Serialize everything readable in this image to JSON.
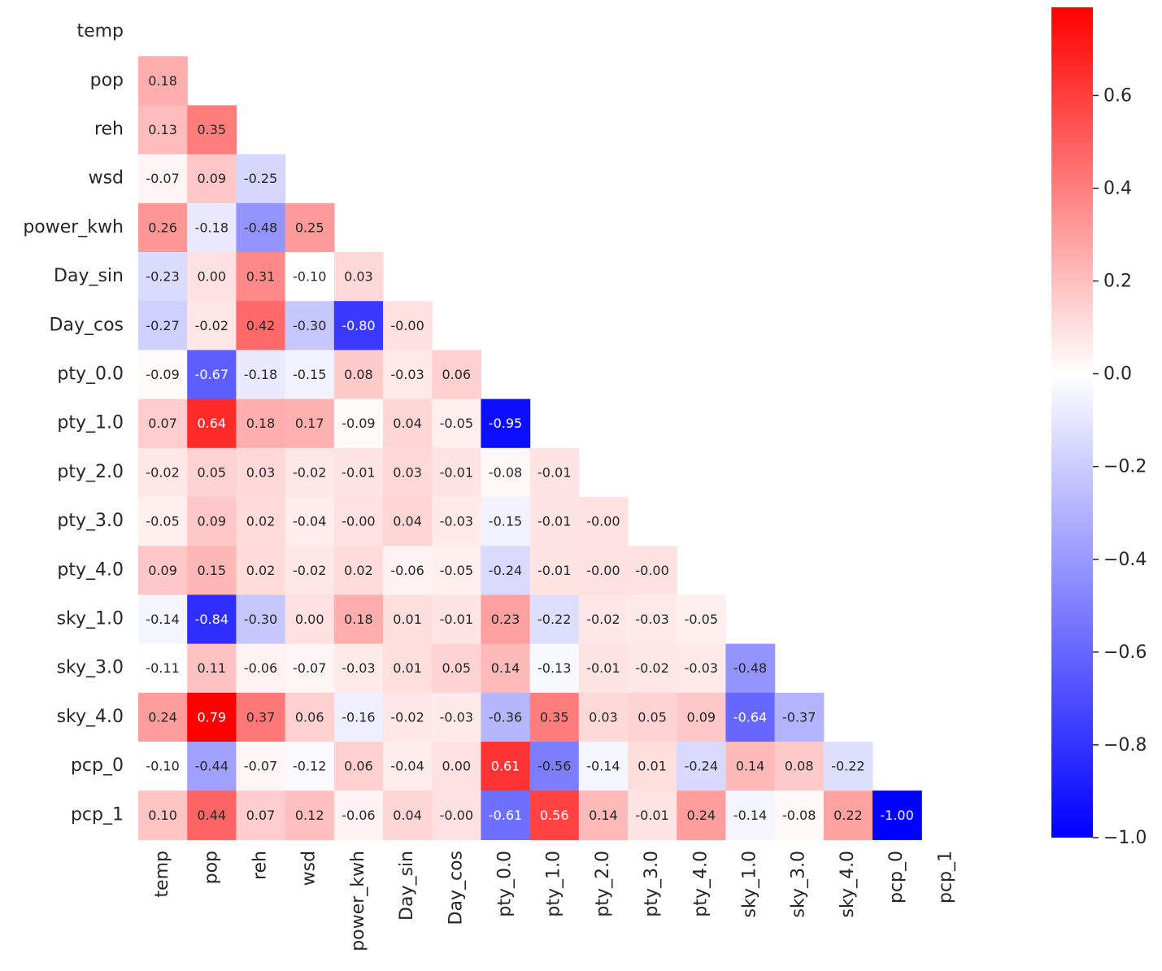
{
  "chart_data": {
    "type": "heatmap",
    "variables": [
      "temp",
      "pop",
      "reh",
      "wsd",
      "power_kwh",
      "Day_sin",
      "Day_cos",
      "pty_0.0",
      "pty_1.0",
      "pty_2.0",
      "pty_3.0",
      "pty_4.0",
      "sky_1.0",
      "sky_3.0",
      "sky_4.0",
      "pcp_0",
      "pcp_1"
    ],
    "rows": [
      "temp",
      "pop",
      "reh",
      "wsd",
      "power_kwh",
      "Day_sin",
      "Day_cos",
      "pty_0.0",
      "pty_1.0",
      "pty_2.0",
      "pty_3.0",
      "pty_4.0",
      "sky_1.0",
      "sky_3.0",
      "sky_4.0",
      "pcp_0",
      "pcp_1"
    ],
    "columns": [
      "temp",
      "pop",
      "reh",
      "wsd",
      "power_kwh",
      "Day_sin",
      "Day_cos",
      "pty_0.0",
      "pty_1.0",
      "pty_2.0",
      "pty_3.0",
      "pty_4.0",
      "sky_1.0",
      "sky_3.0",
      "sky_4.0",
      "pcp_0",
      "pcp_1"
    ],
    "mask": "upper triangle including diagonal",
    "values": [
      [],
      [
        "0.18"
      ],
      [
        "0.13",
        "0.35"
      ],
      [
        "-0.07",
        "0.09",
        "-0.25"
      ],
      [
        "0.26",
        "-0.18",
        "-0.48",
        "0.25"
      ],
      [
        "-0.23",
        "0.00",
        "0.31",
        "-0.10",
        "0.03"
      ],
      [
        "-0.27",
        "-0.02",
        "0.42",
        "-0.30",
        "-0.80",
        "-0.00"
      ],
      [
        "-0.09",
        "-0.67",
        "-0.18",
        "-0.15",
        "0.08",
        "-0.03",
        "0.06"
      ],
      [
        "0.07",
        "0.64",
        "0.18",
        "0.17",
        "-0.09",
        "0.04",
        "-0.05",
        "-0.95"
      ],
      [
        "-0.02",
        "0.05",
        "0.03",
        "-0.02",
        "-0.01",
        "0.03",
        "-0.01",
        "-0.08",
        "-0.01"
      ],
      [
        "-0.05",
        "0.09",
        "0.02",
        "-0.04",
        "-0.00",
        "0.04",
        "-0.03",
        "-0.15",
        "-0.01",
        "-0.00"
      ],
      [
        "0.09",
        "0.15",
        "0.02",
        "-0.02",
        "0.02",
        "-0.06",
        "-0.05",
        "-0.24",
        "-0.01",
        "-0.00",
        "-0.00"
      ],
      [
        "-0.14",
        "-0.84",
        "-0.30",
        "0.00",
        "0.18",
        "0.01",
        "-0.01",
        "0.23",
        "-0.22",
        "-0.02",
        "-0.03",
        "-0.05"
      ],
      [
        "-0.11",
        "0.11",
        "-0.06",
        "-0.07",
        "-0.03",
        "0.01",
        "0.05",
        "0.14",
        "-0.13",
        "-0.01",
        "-0.02",
        "-0.03",
        "-0.48"
      ],
      [
        "0.24",
        "0.79",
        "0.37",
        "0.06",
        "-0.16",
        "-0.02",
        "-0.03",
        "-0.36",
        "0.35",
        "0.03",
        "0.05",
        "0.09",
        "-0.64",
        "-0.37"
      ],
      [
        "-0.10",
        "-0.44",
        "-0.07",
        "-0.12",
        "0.06",
        "-0.04",
        "0.00",
        "0.61",
        "-0.56",
        "-0.14",
        "0.01",
        "-0.24",
        "0.14",
        "0.08",
        "-0.22"
      ],
      [
        "0.10",
        "0.44",
        "0.07",
        "0.12",
        "-0.06",
        "0.04",
        "-0.00",
        "-0.61",
        "0.56",
        "0.14",
        "-0.01",
        "0.24",
        "-0.14",
        "-0.08",
        "0.22",
        "-1.00"
      ]
    ],
    "colormap": "bwr",
    "colors": {
      "low": "#0000ff",
      "mid": "#ffffff",
      "high": "#ff0000"
    },
    "vmin": -1.0,
    "vmax": 0.79,
    "colorbar": {
      "ticks": [
        0.6,
        0.4,
        0.2,
        0.0,
        -0.2,
        -0.4,
        -0.6,
        -0.8,
        -1.0
      ],
      "tick_labels": [
        "0.6",
        "0.4",
        "0.2",
        "0.0",
        "−0.2",
        "−0.4",
        "−0.6",
        "−0.8",
        "−1.0"
      ],
      "placement": "right"
    },
    "title": "",
    "xlabel": "",
    "ylabel": ""
  }
}
